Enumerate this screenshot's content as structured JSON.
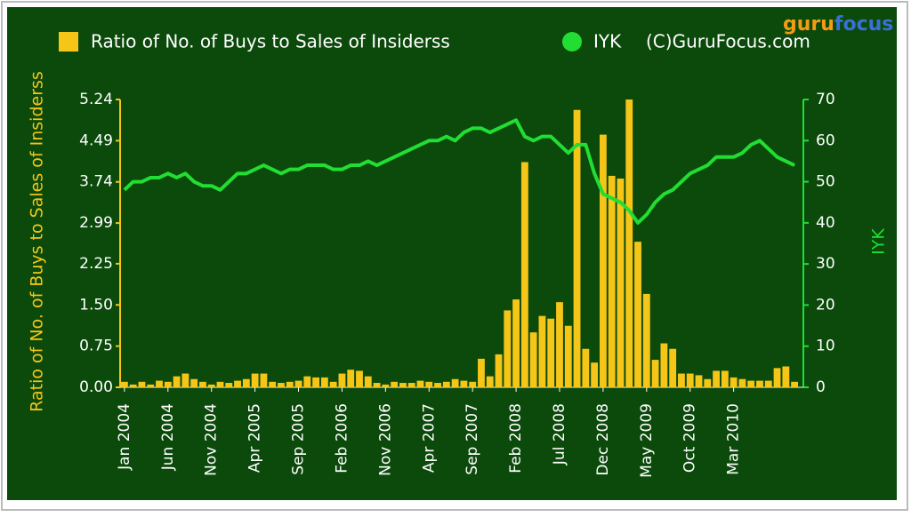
{
  "chart_data": {
    "type": "combo",
    "logo": {
      "part1": "guru",
      "part2": "focus"
    },
    "copyright": "(C)GuruFocus.com",
    "ylabel": "Ratio of No. of Buys to Sales of Insiderss",
    "y2label": "IYK",
    "categories": [
      "Jan 2004",
      null,
      null,
      null,
      null,
      "Jun 2004",
      null,
      null,
      null,
      null,
      "Nov 2004",
      null,
      null,
      null,
      null,
      "Apr 2005",
      null,
      null,
      null,
      null,
      "Sep 2005",
      null,
      null,
      null,
      null,
      "Feb 2006",
      null,
      null,
      null,
      null,
      "Nov 2006",
      null,
      null,
      null,
      null,
      "Apr 2007",
      null,
      null,
      null,
      null,
      "Sep 2007",
      null,
      null,
      null,
      null,
      "Feb 2008",
      null,
      null,
      null,
      null,
      "Jul 2008",
      null,
      null,
      null,
      null,
      "Dec 2008",
      null,
      null,
      null,
      null,
      "May 2009",
      null,
      null,
      null,
      null,
      "Oct 2009",
      null,
      null,
      null,
      null,
      "Mar 2010",
      null,
      null,
      null,
      null,
      null,
      null,
      null
    ],
    "series": [
      {
        "name": "Ratio of No. of Buys to Sales of Insiderss",
        "type": "bar",
        "color": "#f5c518",
        "axis": "y",
        "values": [
          0.1,
          0.05,
          0.1,
          0.05,
          0.12,
          0.1,
          0.2,
          0.25,
          0.15,
          0.1,
          0.05,
          0.1,
          0.08,
          0.12,
          0.15,
          0.25,
          0.25,
          0.1,
          0.08,
          0.1,
          0.12,
          0.2,
          0.18,
          0.18,
          0.1,
          0.25,
          0.32,
          0.3,
          0.2,
          0.08,
          0.05,
          0.1,
          0.08,
          0.08,
          0.12,
          0.1,
          0.08,
          0.1,
          0.15,
          0.12,
          0.1,
          0.52,
          0.2,
          0.6,
          1.4,
          1.6,
          4.1,
          1.0,
          1.3,
          1.25,
          1.55,
          1.12,
          5.05,
          0.7,
          0.45,
          4.6,
          3.85,
          3.8,
          5.24,
          2.65,
          1.7,
          0.5,
          0.8,
          0.7,
          0.25,
          0.25,
          0.22,
          0.15,
          0.3,
          0.3,
          0.18,
          0.15,
          0.12,
          0.12,
          0.12,
          0.35,
          0.38,
          0.1
        ]
      },
      {
        "name": "IYK",
        "type": "line",
        "color": "#22dd33",
        "axis": "y2",
        "values": [
          48,
          50,
          50,
          51,
          51,
          52,
          51,
          52,
          50,
          49,
          49,
          48,
          50,
          52,
          52,
          53,
          54,
          53,
          52,
          53,
          53,
          54,
          54,
          54,
          53,
          53,
          54,
          54,
          55,
          54,
          55,
          56,
          57,
          58,
          59,
          60,
          60,
          61,
          60,
          62,
          63,
          63,
          62,
          63,
          64,
          65,
          61,
          60,
          61,
          61,
          59,
          57,
          59,
          59,
          52,
          47,
          46,
          45,
          43,
          40,
          42,
          45,
          47,
          48,
          50,
          52,
          53,
          54,
          56,
          56,
          56,
          57,
          59,
          60,
          58,
          56,
          55,
          54
        ]
      }
    ],
    "ylim": [
      0,
      5.24
    ],
    "yticks": [
      {
        "value": 0,
        "label": "0.00"
      },
      0.75,
      {
        "value": 1.5,
        "label": "1.50"
      },
      2.25,
      2.99,
      3.74,
      4.49,
      5.24
    ],
    "y2lim": [
      0,
      70
    ],
    "y2ticks": [
      0,
      10,
      20,
      30,
      40,
      50,
      60,
      70
    ]
  }
}
